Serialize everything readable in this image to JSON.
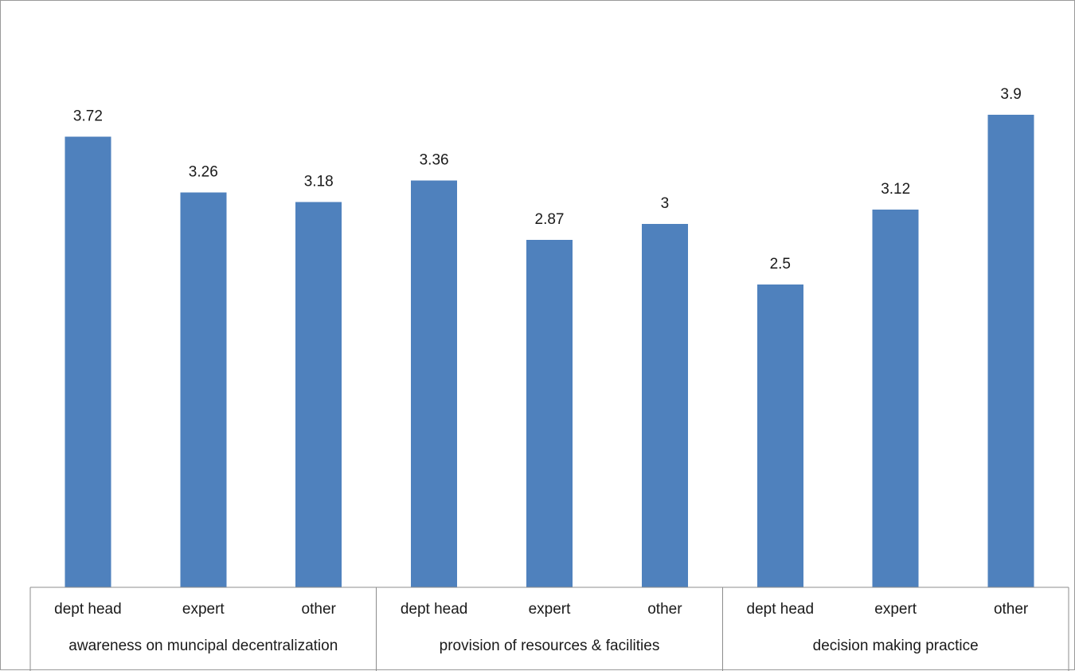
{
  "chart_data": {
    "type": "bar",
    "title": "",
    "xlabel": "",
    "ylabel": "",
    "ylim": [
      0,
      4.4
    ],
    "grid": false,
    "legend": "none",
    "bar_color": "#4f81bd",
    "groups": [
      {
        "label": "awareness on muncipal decentralization",
        "categories": [
          "dept head",
          "expert",
          "other"
        ],
        "values": [
          3.72,
          3.26,
          3.18
        ],
        "value_labels": [
          "3.72",
          "3.26",
          "3.18"
        ]
      },
      {
        "label": "provision of resources & facilities",
        "categories": [
          "dept head",
          "expert",
          "other"
        ],
        "values": [
          3.36,
          2.87,
          3
        ],
        "value_labels": [
          "3.36",
          "2.87",
          "3"
        ]
      },
      {
        "label": "decision making practice",
        "categories": [
          "dept head",
          "expert",
          "other"
        ],
        "values": [
          2.5,
          3.12,
          3.9
        ],
        "value_labels": [
          "2.5",
          "3.12",
          "3.9"
        ]
      }
    ]
  }
}
